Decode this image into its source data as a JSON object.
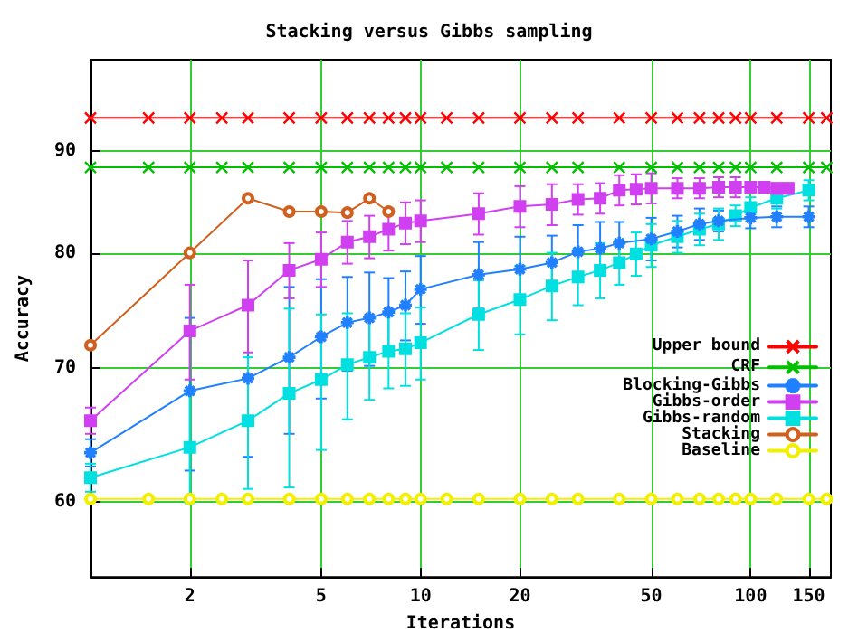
{
  "chart_data": {
    "type": "line",
    "title": "Stacking versus Gibbs sampling",
    "xlabel": "Iterations",
    "ylabel": "Accuracy",
    "log": "xy",
    "xlim": [
      1,
      175
    ],
    "xticks": [
      {
        "value": 1,
        "label": null
      },
      2,
      5,
      10,
      20,
      50,
      100,
      150
    ],
    "ylim": [
      55,
      100
    ],
    "yticks": [
      60,
      70,
      80,
      90
    ],
    "grid": true,
    "legend": "right",
    "series": [
      {
        "name": "Upper bound",
        "color": "#ff0000",
        "marker": "cross",
        "x": [
          1,
          1.5,
          2,
          2.5,
          3,
          4,
          5,
          6,
          7,
          8,
          9,
          10,
          12,
          15,
          20,
          25,
          30,
          40,
          50,
          60,
          70,
          80,
          90,
          100,
          120,
          150,
          170
        ],
        "values": [
          93.5,
          93.5,
          93.5,
          93.5,
          93.5,
          93.5,
          93.5,
          93.5,
          93.5,
          93.5,
          93.5,
          93.5,
          93.5,
          93.5,
          93.5,
          93.5,
          93.5,
          93.5,
          93.5,
          93.5,
          93.5,
          93.5,
          93.5,
          93.5,
          93.5,
          93.5,
          93.5
        ]
      },
      {
        "name": "CRF",
        "color": "#00c000",
        "marker": "cross",
        "x": [
          1,
          1.5,
          2,
          2.5,
          3,
          4,
          5,
          6,
          7,
          8,
          9,
          10,
          12,
          15,
          20,
          25,
          30,
          40,
          50,
          60,
          70,
          80,
          90,
          100,
          120,
          150,
          170
        ],
        "values": [
          88.3,
          88.3,
          88.3,
          88.3,
          88.3,
          88.3,
          88.3,
          88.3,
          88.3,
          88.3,
          88.3,
          88.3,
          88.3,
          88.3,
          88.3,
          88.3,
          88.3,
          88.3,
          88.3,
          88.3,
          88.3,
          88.3,
          88.3,
          88.3,
          88.3,
          88.3,
          88.3
        ]
      },
      {
        "name": "Blocking-Gibbs",
        "color": "#2080ff",
        "marker": "star",
        "x": [
          1,
          2,
          3,
          4,
          5,
          6,
          7,
          8,
          9,
          10,
          15,
          20,
          25,
          30,
          35,
          40,
          50,
          60,
          70,
          80,
          100,
          120,
          150
        ],
        "values": [
          63.5,
          68.2,
          69.2,
          70.9,
          72.6,
          73.8,
          74.2,
          74.7,
          75.3,
          76.7,
          78.0,
          78.5,
          79.1,
          80.1,
          80.4,
          80.9,
          81.3,
          82.0,
          82.7,
          83.0,
          83.3,
          83.4,
          83.4
        ],
        "errors": [
          1,
          6,
          6,
          6,
          5,
          4,
          4,
          3,
          3,
          3,
          3,
          3,
          2.5,
          2.5,
          2.5,
          2,
          2,
          1.5,
          1.5,
          1,
          1,
          1,
          1
        ]
      },
      {
        "name": "Gibbs-order",
        "color": "#d040f0",
        "marker": "square",
        "x": [
          1,
          2,
          3,
          4,
          5,
          6,
          7,
          8,
          9,
          10,
          15,
          20,
          25,
          30,
          35,
          40,
          45,
          50,
          60,
          70,
          80,
          90,
          100,
          110,
          120,
          130
        ],
        "values": [
          65.9,
          73.1,
          75.3,
          78.4,
          79.4,
          81.0,
          81.5,
          82.2,
          82.8,
          83.0,
          83.7,
          84.4,
          84.6,
          85.1,
          85.2,
          86.0,
          86.1,
          86.2,
          86.2,
          86.2,
          86.3,
          86.3,
          86.3,
          86.3,
          86.2,
          86.2
        ],
        "errors": [
          1,
          4,
          4,
          2.5,
          2.5,
          2,
          2,
          2,
          2,
          2,
          2,
          2,
          2,
          1.5,
          1.5,
          1.5,
          1.5,
          1.5,
          1,
          1,
          1,
          1,
          0.5,
          0.5,
          0.5,
          0.5
        ]
      },
      {
        "name": "Gibbs-random",
        "color": "#00e0e0",
        "marker": "square",
        "x": [
          1,
          2,
          3,
          4,
          5,
          6,
          7,
          8,
          9,
          10,
          15,
          20,
          25,
          30,
          35,
          40,
          45,
          50,
          60,
          70,
          80,
          90,
          100,
          120,
          150
        ],
        "values": [
          61.7,
          63.9,
          65.9,
          68.0,
          69.1,
          70.3,
          70.9,
          71.4,
          71.6,
          72.1,
          74.5,
          75.8,
          77.0,
          77.8,
          78.4,
          79.1,
          79.9,
          80.7,
          81.5,
          82.2,
          82.7,
          83.5,
          84.3,
          85.2,
          86.0
        ],
        "errors": [
          1,
          4,
          5,
          7,
          5.4,
          4.3,
          3.4,
          3,
          3,
          3,
          3,
          3,
          3,
          2.5,
          2.5,
          2,
          2,
          2,
          1.5,
          1.5,
          1.5,
          1,
          1,
          1,
          1
        ]
      },
      {
        "name": "Stacking",
        "color": "#d06020",
        "marker": "circle",
        "x": [
          1,
          2,
          3,
          4,
          5,
          6,
          7,
          8
        ],
        "values": [
          71.9,
          80.0,
          85.2,
          83.9,
          83.9,
          83.8,
          85.2,
          83.9
        ]
      },
      {
        "name": "Baseline",
        "color": "#f0f000",
        "marker": "circle",
        "x": [
          1,
          1.5,
          2,
          2.5,
          3,
          4,
          5,
          6,
          7,
          8,
          9,
          10,
          12,
          15,
          20,
          25,
          30,
          40,
          50,
          60,
          70,
          80,
          90,
          100,
          120,
          150,
          170
        ],
        "values": [
          60.2,
          60.2,
          60.2,
          60.2,
          60.2,
          60.2,
          60.2,
          60.2,
          60.2,
          60.2,
          60.2,
          60.2,
          60.2,
          60.2,
          60.2,
          60.2,
          60.2,
          60.2,
          60.2,
          60.2,
          60.2,
          60.2,
          60.2,
          60.2,
          60.2,
          60.2,
          60.2
        ]
      }
    ]
  }
}
